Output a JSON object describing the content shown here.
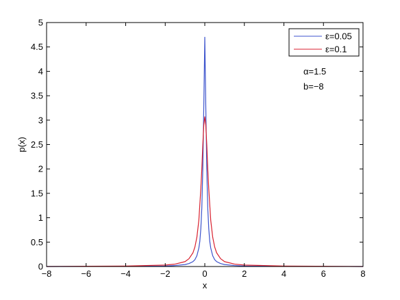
{
  "chart_data": {
    "type": "line",
    "title": "",
    "xlabel": "x",
    "ylabel": "p(x)",
    "xlim": [
      -8,
      8
    ],
    "ylim": [
      0,
      5
    ],
    "xticks": [
      -8,
      -6,
      -4,
      -2,
      0,
      2,
      4,
      6,
      8
    ],
    "xtick_labels": [
      "−8",
      "−6",
      "−4",
      "−2",
      "0",
      "2",
      "4",
      "6",
      "8"
    ],
    "yticks": [
      0,
      0.5,
      1,
      1.5,
      2,
      2.5,
      3,
      3.5,
      4,
      4.5,
      5
    ],
    "ytick_labels": [
      "0",
      "0.5",
      "1",
      "1.5",
      "2",
      "2.5",
      "3",
      "3.5",
      "4",
      "4.5",
      "5"
    ],
    "grid": false,
    "legend_position": "top-right",
    "series": [
      {
        "name": "ε=0.05",
        "color": "#3b52cc",
        "x": [
          -8,
          -4,
          -2,
          -1.5,
          -1,
          -0.8,
          -0.6,
          -0.5,
          -0.4,
          -0.3,
          -0.25,
          -0.2,
          -0.15,
          -0.1,
          -0.05,
          0,
          0.05,
          0.1,
          0.15,
          0.2,
          0.25,
          0.3,
          0.4,
          0.5,
          0.6,
          0.8,
          1,
          1.5,
          2,
          4,
          8
        ],
        "y": [
          0,
          0.003,
          0.01,
          0.02,
          0.04,
          0.06,
          0.1,
          0.14,
          0.22,
          0.38,
          0.52,
          0.78,
          1.2,
          2.0,
          3.3,
          4.7,
          3.3,
          2.0,
          1.2,
          0.78,
          0.52,
          0.38,
          0.22,
          0.14,
          0.1,
          0.06,
          0.04,
          0.02,
          0.01,
          0.003,
          0
        ]
      },
      {
        "name": "ε=0.1",
        "color": "#d81e2c",
        "x": [
          -8,
          -4,
          -2,
          -1.5,
          -1,
          -0.8,
          -0.6,
          -0.5,
          -0.4,
          -0.3,
          -0.2,
          -0.15,
          -0.1,
          -0.05,
          0,
          0.05,
          0.1,
          0.15,
          0.2,
          0.3,
          0.4,
          0.5,
          0.6,
          0.8,
          1,
          1.5,
          2,
          4,
          8
        ],
        "y": [
          0,
          0.01,
          0.03,
          0.05,
          0.1,
          0.16,
          0.28,
          0.4,
          0.6,
          0.95,
          1.6,
          2.0,
          2.5,
          2.9,
          3.07,
          2.9,
          2.5,
          2.0,
          1.6,
          0.95,
          0.6,
          0.4,
          0.28,
          0.16,
          0.1,
          0.05,
          0.03,
          0.01,
          0
        ]
      }
    ],
    "annotations": [
      "α=1.5",
      "b=−8"
    ]
  }
}
